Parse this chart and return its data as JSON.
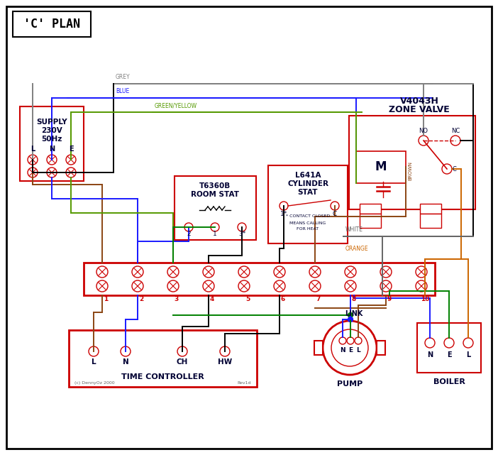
{
  "title": "'C' PLAN",
  "bg_color": "#ffffff",
  "red": "#cc0000",
  "blue": "#1a1aff",
  "green": "#008000",
  "grey": "#808080",
  "brown": "#8B4513",
  "orange": "#cc6600",
  "black": "#000000",
  "gy": "#559900",
  "tc": "#000033",
  "white_wire": "#666666",
  "supply_labels": [
    "SUPPLY",
    "230V",
    "50Hz"
  ],
  "lne": [
    "L",
    "N",
    "E"
  ],
  "zone_valve_title": [
    "V4043H",
    "ZONE VALVE"
  ],
  "room_stat_title": [
    "T6360B",
    "ROOM STAT"
  ],
  "cyl_stat_title": [
    "L641A",
    "CYLINDER",
    "STAT"
  ],
  "terminal_nums": [
    "1",
    "2",
    "3",
    "4",
    "5",
    "6",
    "7",
    "8",
    "9",
    "10"
  ],
  "tc_labels": [
    "L",
    "N",
    "CH",
    "HW"
  ],
  "tc_title": "TIME CONTROLLER",
  "pump_label": "PUMP",
  "boiler_label": "BOILER",
  "nel": [
    "N",
    "E",
    "L"
  ],
  "link_label": "LINK",
  "wire_labels": [
    "GREY",
    "BLUE",
    "GREEN/YELLOW",
    "BROWN",
    "WHITE",
    "ORANGE"
  ],
  "contact_note": [
    "* CONTACT CLOSED",
    "MEANS CALLING",
    "FOR HEAT"
  ],
  "copyright": "(c) DennyOz 2000",
  "rev": "Rev1d"
}
